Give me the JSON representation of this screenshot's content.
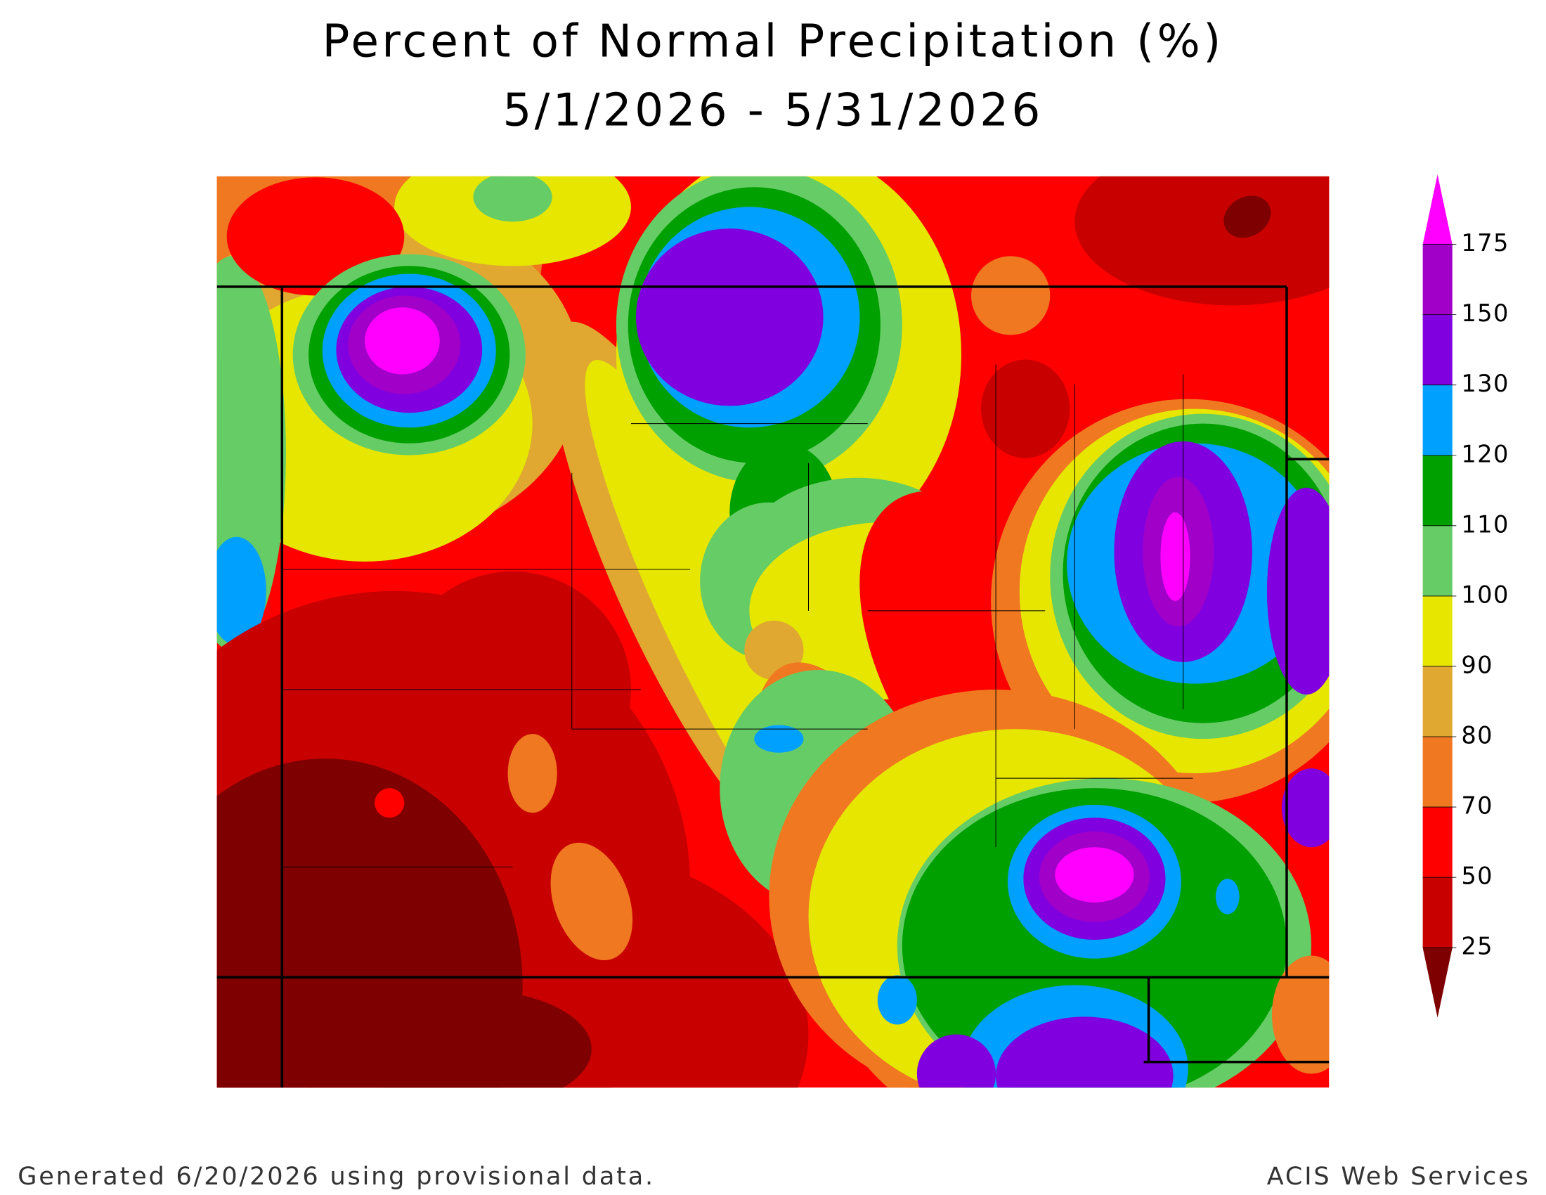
{
  "header": {
    "title": "Percent of Normal Precipitation (%)",
    "subtitle": "5/1/2026 - 5/31/2026"
  },
  "legend": {
    "levels": [
      25,
      50,
      70,
      80,
      90,
      100,
      110,
      120,
      130,
      150,
      175
    ],
    "colors": [
      "#7f0000",
      "#c80000",
      "#ff0000",
      "#f07820",
      "#e0a830",
      "#e6e600",
      "#66cc66",
      "#00a000",
      "#00a0ff",
      "#8000e0",
      "#a000c8",
      "#ff00ff"
    ]
  },
  "footer": {
    "left": "Generated 6/20/2026 using provisional data.",
    "right": "ACIS Web Services"
  }
}
